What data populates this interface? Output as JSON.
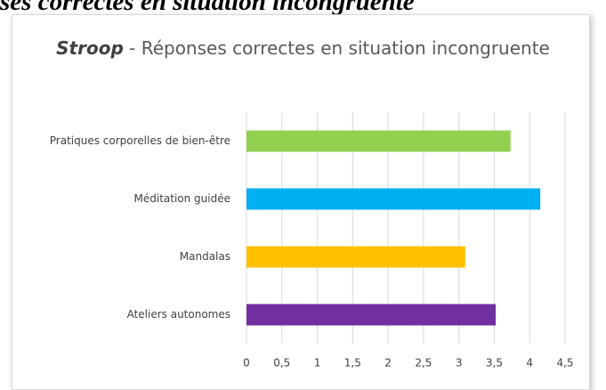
{
  "caption": "ses correctes en situation incongruente",
  "chart_data": {
    "type": "barh",
    "title_emphasis": "Stroop",
    "title": "- Réponses correctes en situation incongruente",
    "categories": [
      "Pratiques corporelles de bien-être",
      "Méditation guidée",
      "Mandalas",
      "Ateliers autonomes"
    ],
    "values": [
      3.73,
      4.15,
      3.09,
      3.52
    ],
    "colors": [
      "#92d050",
      "#00b0f0",
      "#ffc000",
      "#7030a0"
    ],
    "xlim": [
      0,
      4.5
    ],
    "xticks": [
      0,
      {
        "value": 0.5,
        "label": "0,5"
      },
      1,
      {
        "value": 1.5,
        "label": "1,5"
      },
      2,
      {
        "value": 2.5,
        "label": "2,5"
      },
      3,
      {
        "value": 3.5,
        "label": "3,5"
      },
      4,
      {
        "value": 4.5,
        "label": "4,5"
      }
    ],
    "grid": true
  }
}
